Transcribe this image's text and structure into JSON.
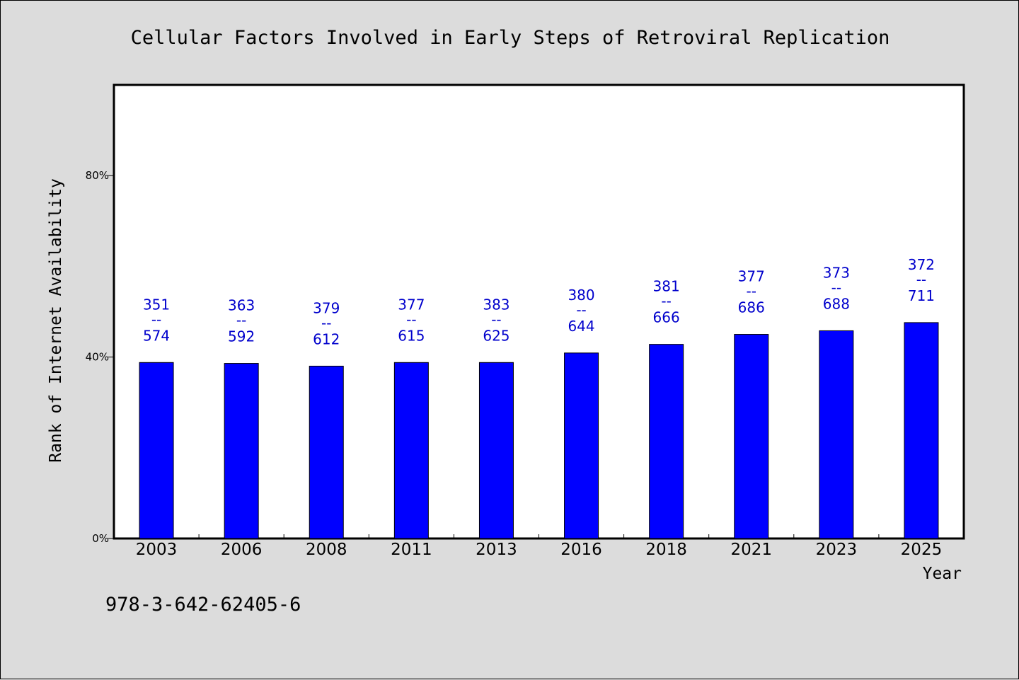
{
  "chart_data": {
    "type": "bar",
    "title": "Cellular Factors Involved in Early Steps of Retroviral Replication",
    "xlabel": "Year",
    "ylabel": "Rank of Internet Availability",
    "categories": [
      "2003",
      "2006",
      "2008",
      "2011",
      "2013",
      "2016",
      "2018",
      "2021",
      "2023",
      "2025"
    ],
    "series": [
      {
        "values": [
          38.8,
          38.6,
          38.0,
          38.8,
          38.8,
          40.9,
          42.8,
          45.0,
          45.8,
          47.6
        ]
      }
    ],
    "data_labels": [
      {
        "top": "351",
        "sep": "--",
        "bottom": "574"
      },
      {
        "top": "363",
        "sep": "--",
        "bottom": "592"
      },
      {
        "top": "379",
        "sep": "--",
        "bottom": "612"
      },
      {
        "top": "377",
        "sep": "--",
        "bottom": "615"
      },
      {
        "top": "383",
        "sep": "--",
        "bottom": "625"
      },
      {
        "top": "380",
        "sep": "--",
        "bottom": "644"
      },
      {
        "top": "381",
        "sep": "--",
        "bottom": "666"
      },
      {
        "top": "377",
        "sep": "--",
        "bottom": "686"
      },
      {
        "top": "373",
        "sep": "--",
        "bottom": "688"
      },
      {
        "top": "372",
        "sep": "--",
        "bottom": "711"
      }
    ],
    "y_ticks": [
      {
        "value": 0,
        "label": "0%"
      },
      {
        "value": 40,
        "label": "40%"
      },
      {
        "value": 80,
        "label": "80%"
      }
    ],
    "ylim": [
      0,
      100
    ],
    "grid": false,
    "colors": {
      "bar": "#0000ff",
      "label": "#0000cc",
      "plot_bg": "#ffffff",
      "page_bg": "#dcdcdc"
    }
  },
  "footer": {
    "isbn": "978-3-642-62405-6"
  }
}
